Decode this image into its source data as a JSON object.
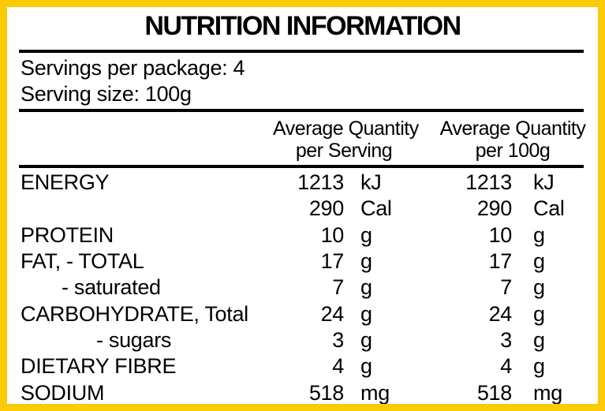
{
  "colors": {
    "border": "#fbcb08",
    "text": "#000000",
    "background": "#ffffff"
  },
  "panel": {
    "title": "NUTRITION INFORMATION"
  },
  "serving_info": {
    "servings_per_package": "Servings per package: 4",
    "serving_size": "Serving size: 100g"
  },
  "table": {
    "columns": [
      {
        "line1": "Average Quantity",
        "line2": "per Serving"
      },
      {
        "line1": "Average Quantity",
        "line2": "per 100g"
      }
    ],
    "rows": [
      {
        "label": "ENERGY",
        "level": 0,
        "per_serving": {
          "value": "1213",
          "unit": "kJ"
        },
        "per_100g": {
          "value": "1213",
          "unit": "kJ"
        }
      },
      {
        "label": "",
        "level": 0,
        "per_serving": {
          "value": "290",
          "unit": "Cal"
        },
        "per_100g": {
          "value": "290",
          "unit": "Cal"
        }
      },
      {
        "label": "PROTEIN",
        "level": 0,
        "per_serving": {
          "value": "10",
          "unit": "g"
        },
        "per_100g": {
          "value": "10",
          "unit": "g"
        }
      },
      {
        "label": "FAT, - TOTAL",
        "level": 0,
        "per_serving": {
          "value": "17",
          "unit": "g"
        },
        "per_100g": {
          "value": "17",
          "unit": "g"
        }
      },
      {
        "label": "- saturated",
        "level": 1,
        "per_serving": {
          "value": "7",
          "unit": "g"
        },
        "per_100g": {
          "value": "7",
          "unit": "g"
        }
      },
      {
        "label": "CARBOHYDRATE, Total",
        "level": 0,
        "per_serving": {
          "value": "24",
          "unit": "g"
        },
        "per_100g": {
          "value": "24",
          "unit": "g"
        }
      },
      {
        "label": "- sugars",
        "level": 2,
        "per_serving": {
          "value": "3",
          "unit": "g"
        },
        "per_100g": {
          "value": "3",
          "unit": "g"
        }
      },
      {
        "label": "DIETARY FIBRE",
        "level": 0,
        "per_serving": {
          "value": "4",
          "unit": "g"
        },
        "per_100g": {
          "value": "4",
          "unit": "g"
        }
      },
      {
        "label": "SODIUM",
        "level": 0,
        "per_serving": {
          "value": "518",
          "unit": "mg"
        },
        "per_100g": {
          "value": "518",
          "unit": "mg"
        }
      }
    ]
  }
}
